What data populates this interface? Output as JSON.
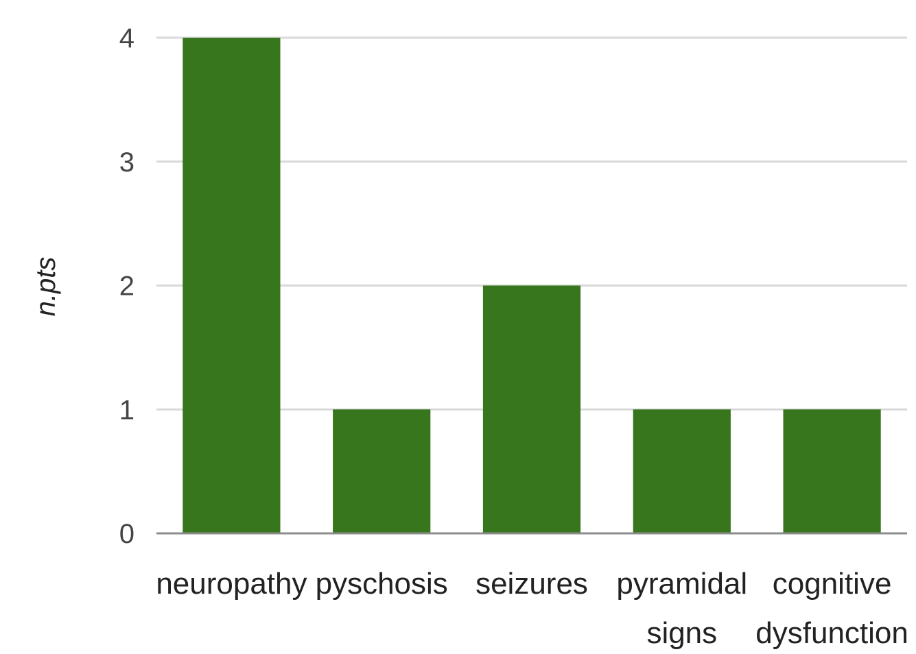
{
  "chart_data": {
    "type": "bar",
    "categories": [
      "neuropathy",
      "pyschosis",
      "seizures",
      "pyramidal signs",
      "cognitive dysfunction"
    ],
    "category_lines": [
      [
        "neuropathy"
      ],
      [
        "pyschosis"
      ],
      [
        "seizures"
      ],
      [
        "pyramidal",
        "signs"
      ],
      [
        "cognitive",
        "dysfunction"
      ]
    ],
    "values": [
      4,
      1,
      2,
      1,
      1
    ],
    "title": "",
    "xlabel": "",
    "ylabel": "n.pts",
    "ylim": [
      0,
      4
    ],
    "yticks": [
      0,
      1,
      2,
      3,
      4
    ],
    "bar_color": "#38761d",
    "grid": true,
    "legend": "none"
  }
}
